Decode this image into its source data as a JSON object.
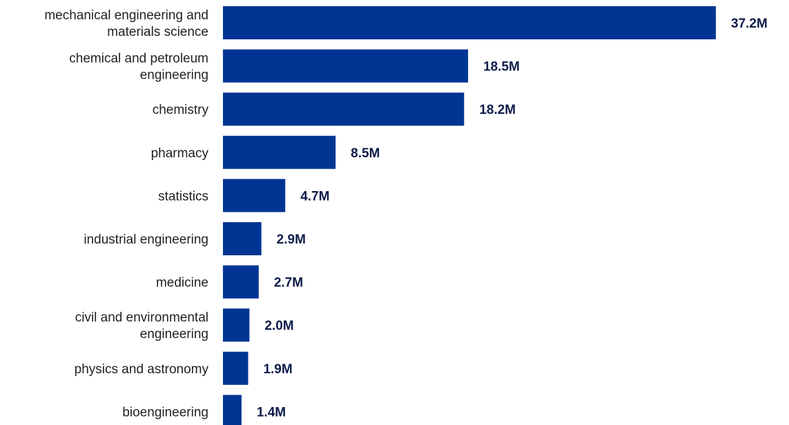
{
  "chart_data": {
    "type": "bar",
    "orientation": "horizontal",
    "title": "",
    "xlabel": "",
    "ylabel": "",
    "categories": [
      "mechanical engineering and materials science",
      "chemical and petroleum engineering",
      "chemistry",
      "pharmacy",
      "statistics",
      "industrial engineering",
      "medicine",
      "civil and environmental engineering",
      "physics and astronomy",
      "bioengineering"
    ],
    "category_lines": [
      [
        "mechanical engineering and",
        "materials science"
      ],
      [
        "chemical and petroleum",
        "engineering"
      ],
      [
        "chemistry"
      ],
      [
        "pharmacy"
      ],
      [
        "statistics"
      ],
      [
        "industrial engineering"
      ],
      [
        "medicine"
      ],
      [
        "civil and environmental",
        "engineering"
      ],
      [
        "physics and astronomy"
      ],
      [
        "bioengineering"
      ]
    ],
    "values": [
      37.2,
      18.5,
      18.2,
      8.5,
      4.7,
      2.9,
      2.7,
      2.0,
      1.9,
      1.4
    ],
    "value_labels": [
      "37.2M",
      "18.5M",
      "18.2M",
      "8.5M",
      "4.7M",
      "2.9M",
      "2.7M",
      "2.0M",
      "1.9M",
      "1.4M"
    ],
    "xlim": [
      0,
      37.2
    ],
    "grid": false,
    "legend": "none",
    "colors": {
      "bar": "#003594",
      "value_label": "#0d1b4a",
      "category_label": "#222222"
    }
  }
}
